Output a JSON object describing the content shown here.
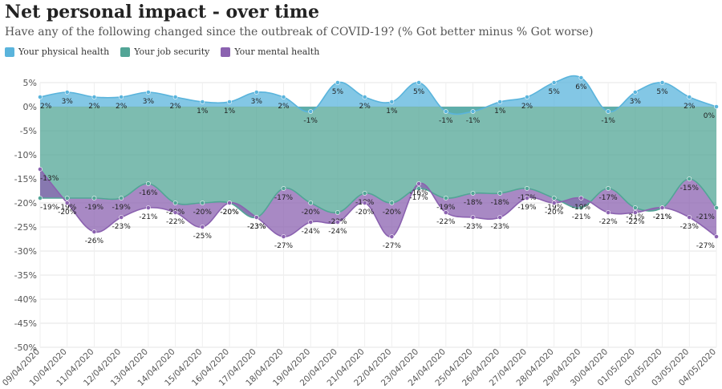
{
  "title": "Net personal impact - over time",
  "subtitle": "Have any of the following changed since the outbreak of COVID-19? (% Got better minus % Got worse)",
  "chart_data": {
    "type": "area",
    "stacked": true,
    "title": "Net personal impact - over time",
    "subtitle": "Have any of the following changed since the outbreak of COVID-19? (% Got better minus % Got worse)",
    "xlabel": "",
    "ylabel": "",
    "ylim": [
      -50,
      5
    ],
    "y_ticks": [
      5,
      0,
      -5,
      -10,
      -15,
      -20,
      -25,
      -30,
      -35,
      -40,
      -45,
      -50
    ],
    "y_tick_labels": [
      "5%",
      "0%",
      "-5%",
      "-10%",
      "-15%",
      "-20%",
      "-25%",
      "-30%",
      "-35%",
      "-40%",
      "-45%",
      "-50%"
    ],
    "grid": true,
    "legend_position": "top-left",
    "x": [
      "09/04/2020",
      "10/04/2020",
      "11/04/2020",
      "12/04/2020",
      "13/04/2020",
      "14/04/2020",
      "15/04/2020",
      "16/04/2020",
      "17/04/2020",
      "18/04/2020",
      "19/04/2020",
      "20/04/2020",
      "21/04/2020",
      "22/04/2020",
      "23/04/2020",
      "24/04/2020",
      "25/04/2020",
      "26/04/2020",
      "27/04/2020",
      "28/04/2020",
      "29/04/2020",
      "30/04/2020",
      "01/05/2020",
      "02/05/2020",
      "03/05/2020",
      "04/05/2020"
    ],
    "series": [
      {
        "name": "Your physical health",
        "color": "#5ab4dc",
        "values": [
          2,
          3,
          2,
          2,
          3,
          2,
          1,
          1,
          3,
          2,
          -1,
          5,
          2,
          1,
          5,
          -1,
          -1,
          1,
          2,
          5,
          6,
          -1,
          3,
          5,
          2,
          0
        ],
        "labels": [
          "2%",
          "3%",
          "2%",
          "2%",
          "3%",
          "2%",
          "1%",
          "1%",
          "3%",
          "2%",
          "-1%",
          "5%",
          "2%",
          "1%",
          "5%",
          "-1%",
          "-1%",
          "1%",
          "2%",
          "5%",
          "6%",
          "-1%",
          "3%",
          "5%",
          "2%",
          "0%"
        ]
      },
      {
        "name": "Your job security",
        "color": "#52a596",
        "values": [
          -19,
          -19,
          -19,
          -19,
          -16,
          -20,
          -20,
          -20,
          -23,
          -17,
          -20,
          -22,
          -18,
          -20,
          -17,
          -19,
          -18,
          -18,
          -17,
          -19,
          -21,
          -17,
          -21,
          -21,
          -15,
          -21
        ],
        "labels": [
          "-19%",
          "-19%",
          "-19%",
          "-19%",
          "-16%",
          "-20%",
          "-20%",
          "-20%",
          "-23%",
          "-17%",
          "-20%",
          "-22%",
          "-18%",
          "-20%",
          "-17%",
          "-19%",
          "-18%",
          "-18%",
          "-17%",
          "-19%",
          "-21%",
          "-17%",
          "-21%",
          "-21%",
          "-15%",
          "-21%"
        ]
      },
      {
        "name": "Your mental health",
        "color": "#8b62b0",
        "values": [
          -13,
          -20,
          -26,
          -23,
          -21,
          -22,
          -25,
          -20,
          -23,
          -27,
          -24,
          -24,
          -20,
          -27,
          -16,
          -22,
          -23,
          -23,
          -19,
          -20,
          -19,
          -22,
          -22,
          -21,
          -23,
          -27
        ],
        "labels": [
          "-13%",
          "-20%",
          "-26%",
          "-23%",
          "-21%",
          "-22%",
          "-25%",
          "-20%",
          "-23%",
          "-27%",
          "-24%",
          "-24%",
          "-20%",
          "-27%",
          "-16%",
          "-22%",
          "-23%",
          "-23%",
          "-19%",
          "-20%",
          "-19%",
          "-22%",
          "-22%",
          "-21%",
          "-23%",
          "-27%"
        ]
      }
    ]
  }
}
